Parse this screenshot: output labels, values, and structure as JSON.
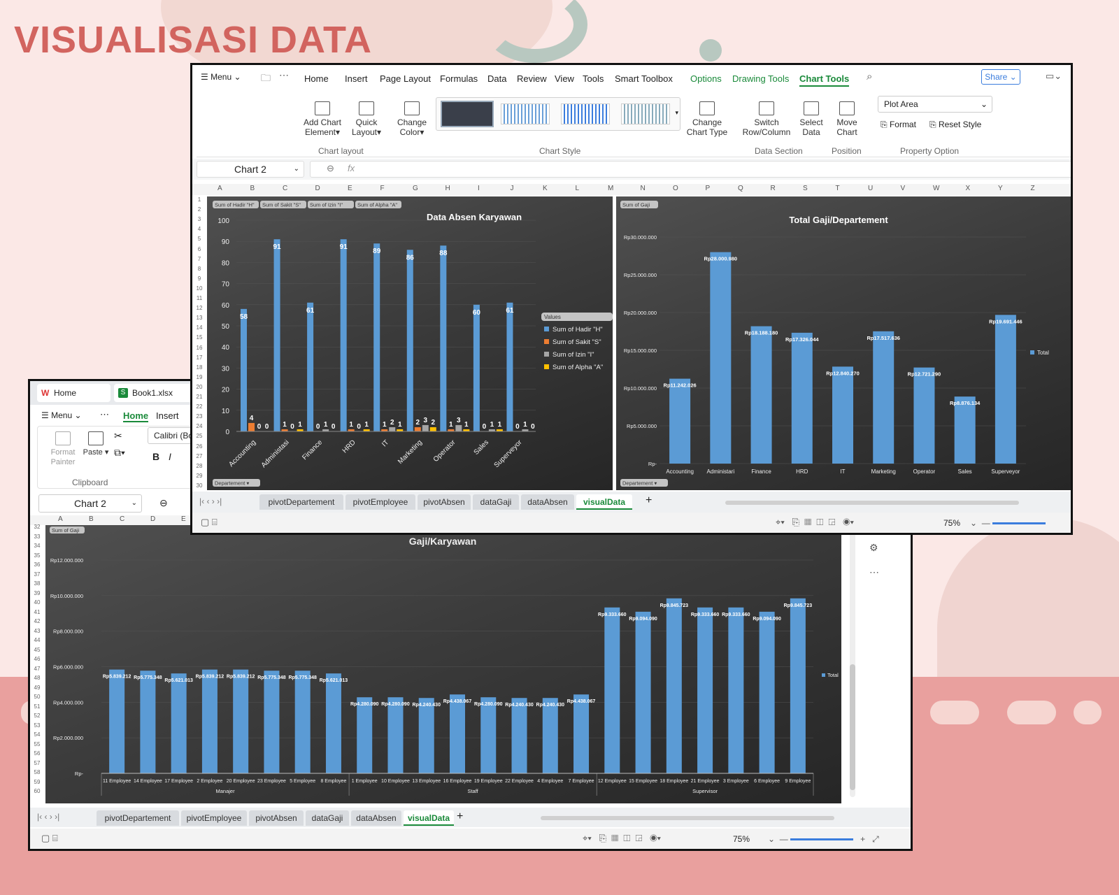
{
  "page_title": "VISUALISASI DATA",
  "colors": {
    "title": "#d2645f",
    "bar": "#5b9bd5",
    "orange": "#ed7d31",
    "gray": "#a5a5a5",
    "yellow": "#ffc000",
    "accent": "#1a8a3a"
  },
  "main_window": {
    "menu_label": "Menu",
    "tabs": [
      "Home",
      "Insert",
      "Page Layout",
      "Formulas",
      "Data",
      "Review",
      "View",
      "Tools",
      "Smart Toolbox"
    ],
    "context_tabs": [
      "Options",
      "Drawing Tools",
      "Chart Tools"
    ],
    "share_label": "Share",
    "ribbon": {
      "add_chart_element": [
        "Add Chart",
        "Element"
      ],
      "quick_layout": [
        "Quick",
        "Layout"
      ],
      "change_color": [
        "Change",
        "Color"
      ],
      "change_chart_type": [
        "Change",
        "Chart Type"
      ],
      "switch_row_column": [
        "Switch",
        "Row/Column"
      ],
      "select_data": [
        "Select",
        "Data"
      ],
      "move_chart": [
        "Move",
        "Chart"
      ],
      "plot_area": "Plot Area",
      "format": "Format",
      "reset_style": "Reset Style",
      "groups": [
        "Chart layout",
        "Chart Style",
        "Data Section",
        "Position",
        "Property Option"
      ]
    },
    "name_box": "Chart 2",
    "fx": "fx",
    "columns": [
      "A",
      "B",
      "C",
      "D",
      "E",
      "F",
      "G",
      "H",
      "I",
      "J",
      "K",
      "L",
      "M",
      "N",
      "O",
      "P",
      "Q",
      "R",
      "S",
      "T",
      "U",
      "V",
      "W",
      "X",
      "Y",
      "Z"
    ],
    "rows": [
      "1",
      "2",
      "3",
      "4",
      "5",
      "6",
      "7",
      "8",
      "9",
      "10",
      "11",
      "12",
      "13",
      "14",
      "15",
      "16",
      "17",
      "18",
      "19",
      "20",
      "21",
      "22",
      "23",
      "24",
      "25",
      "26",
      "27",
      "28",
      "29",
      "30"
    ],
    "sheets": [
      "pivotDepartement",
      "pivotEmployee",
      "pivotAbsen",
      "dataGaji",
      "dataAbsen",
      "visualData"
    ],
    "active_sheet": "visualData",
    "zoom": "75%"
  },
  "second_window": {
    "home_tab": "Home",
    "file_tab": "Book1.xlsx",
    "menu_label": "Menu",
    "tabs": [
      "Home",
      "Insert"
    ],
    "format_painter": [
      "Format",
      "Painter"
    ],
    "paste": "Paste",
    "font_name": "Calibri (Bo",
    "clipboard": "Clipboard",
    "name_box": "Chart 2",
    "columns": [
      "A",
      "B",
      "C",
      "D",
      "E"
    ],
    "rows": [
      "32",
      "33",
      "34",
      "35",
      "36",
      "37",
      "38",
      "39",
      "40",
      "41",
      "42",
      "43",
      "44",
      "45",
      "46",
      "47",
      "48",
      "49",
      "50",
      "51",
      "52",
      "53",
      "54",
      "55",
      "56",
      "57",
      "58",
      "59",
      "60"
    ],
    "sheets": [
      "pivotDepartement",
      "pivotEmployee",
      "pivotAbsen",
      "dataGaji",
      "dataAbsen",
      "visualData"
    ],
    "zoom": "75%"
  },
  "chart_data": [
    {
      "type": "bar",
      "title": "Data Absen Karyawan",
      "categories": [
        "Accounting",
        "Administasi",
        "Finance",
        "HRD",
        "IT",
        "Marketing",
        "Operator",
        "Sales",
        "Superveyor"
      ],
      "series": [
        {
          "name": "Sum of Hadir \"H\"",
          "values": [
            58,
            91,
            61,
            91,
            89,
            86,
            88,
            60,
            61
          ]
        },
        {
          "name": "Sum of Sakit \"S\"",
          "values": [
            4,
            1,
            0,
            1,
            1,
            2,
            1,
            0,
            0
          ]
        },
        {
          "name": "Sum of Izin \"I\"",
          "values": [
            0,
            0,
            1,
            0,
            2,
            3,
            3,
            1,
            1
          ]
        },
        {
          "name": "Sum of Alpha \"A\"",
          "values": [
            0,
            1,
            0,
            1,
            1,
            2,
            1,
            1,
            0
          ]
        }
      ],
      "ylim": [
        0,
        100
      ],
      "yticks": [
        "0",
        "10",
        "20",
        "30",
        "40",
        "50",
        "60",
        "70",
        "80",
        "90",
        "100"
      ],
      "legend_title": "Values",
      "legend": "right",
      "field_pills": [
        "Sum of Hadir \"H\"",
        "Sum of Sakit \"S\"",
        "Sum of Izin \"I\"",
        "Sum of Alpha \"A\""
      ],
      "axis_field": "Departement"
    },
    {
      "type": "bar",
      "title": "Total Gaji/Departement",
      "categories": [
        "Accounting",
        "Administari",
        "Finance",
        "HRD",
        "IT",
        "Marketing",
        "Operator",
        "Sales",
        "Superveyor"
      ],
      "values": [
        11242026,
        28000980,
        18188180,
        17326044,
        12840270,
        17517636,
        12721290,
        8876134,
        19691446
      ],
      "labels": [
        "Rp11.242.026",
        "Rp28.000.980",
        "Rp18.188.180",
        "Rp17.326.044",
        "Rp12.840.270",
        "Rp17.517.636",
        "Rp12.721.290",
        "Rp8.876.134",
        "Rp19.691.446"
      ],
      "ylim": [
        0,
        30000000
      ],
      "yticks": [
        "Rp-",
        "Rp5.000.000",
        "Rp10.000.000",
        "Rp15.000.000",
        "Rp20.000.000",
        "Rp25.000.000",
        "Rp30.000.000"
      ],
      "legend": "Total",
      "value_pill": "Sum of Gaji",
      "axis_field": "Departement"
    },
    {
      "type": "bar",
      "title": "Gaji/Karyawan",
      "categories": [
        "11 Employee",
        "14 Employee",
        "17 Employee",
        "2 Employee",
        "20 Employee",
        "23 Employee",
        "5 Employee",
        "8 Employee",
        "1 Employee",
        "10 Employee",
        "13 Employee",
        "16 Employee",
        "19 Employee",
        "22 Employee",
        "4 Employee",
        "7 Employee",
        "12 Employee",
        "15 Employee",
        "18 Employee",
        "21 Employee",
        "3 Employee",
        "6 Employee",
        "9 Employee"
      ],
      "values": [
        5839212,
        5775348,
        5621013,
        5839212,
        5839212,
        5775348,
        5775348,
        5621013,
        4280090,
        4280090,
        4240430,
        4438067,
        4280090,
        4240430,
        4240430,
        4438067,
        9333660,
        9094090,
        9845723,
        9333660,
        9333660,
        9094090,
        9845723
      ],
      "labels": [
        "Rp5.839.212",
        "Rp5.775.348",
        "Rp5.621.013",
        "Rp5.839.212",
        "Rp5.839.212",
        "Rp5.775.348",
        "Rp5.775.348",
        "Rp5.621.013",
        "Rp4.280.090",
        "Rp4.280.090",
        "Rp4.240.430",
        "Rp4.438.067",
        "Rp4.280.090",
        "Rp4.240.430",
        "Rp4.240.430",
        "Rp4.438.067",
        "Rp9.333.660",
        "Rp9.094.090",
        "Rp9.845.723",
        "Rp9.333.660",
        "Rp9.333.660",
        "Rp9.094.090",
        "Rp9.845.723"
      ],
      "groups": [
        {
          "name": "Manajer",
          "count": 8
        },
        {
          "name": "Staff",
          "count": 8
        },
        {
          "name": "Supervisor",
          "count": 7
        }
      ],
      "ylim": [
        0,
        12000000
      ],
      "yticks": [
        "Rp-",
        "Rp2.000.000",
        "Rp4.000.000",
        "Rp6.000.000",
        "Rp8.000.000",
        "Rp10.000.000",
        "Rp12.000.000"
      ],
      "legend": "Total",
      "value_pill": "Sum of Gaji"
    }
  ]
}
